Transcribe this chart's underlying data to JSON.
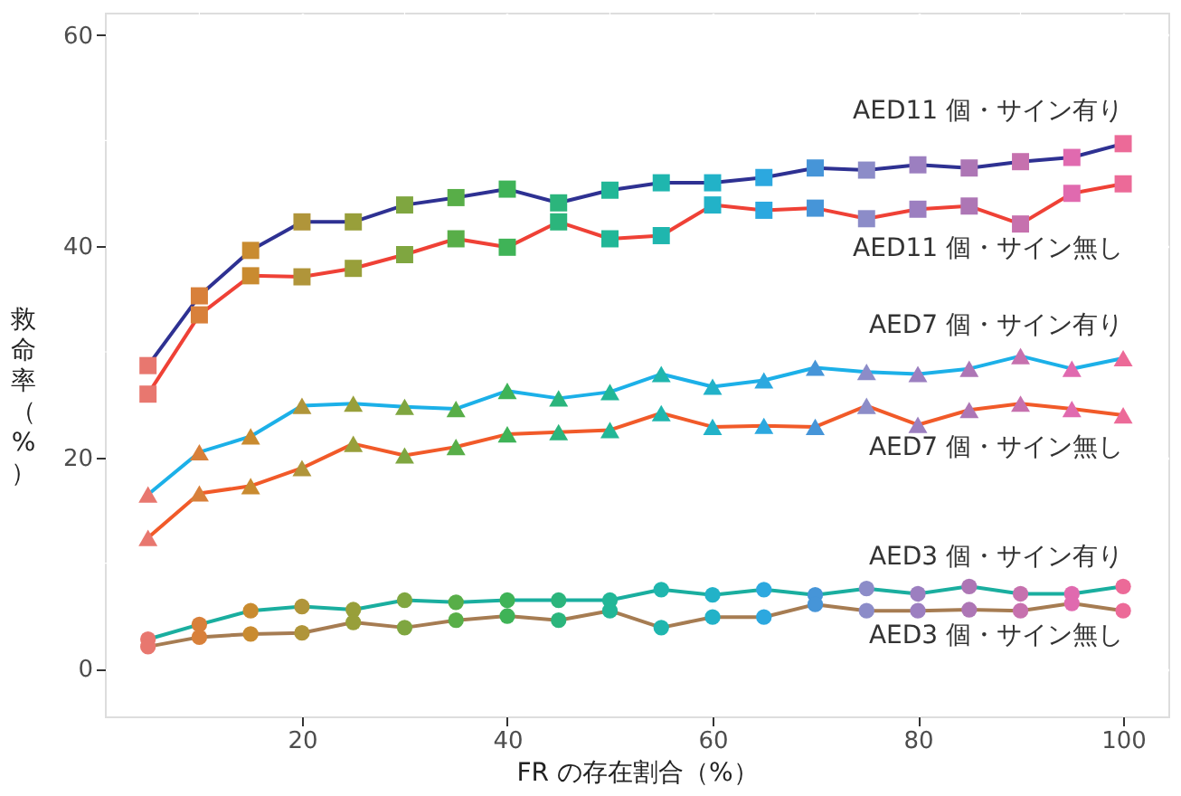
{
  "chart_data": {
    "type": "line",
    "xlabel": "FR の存在割合（%）",
    "ylabel": "救命率（%）",
    "x": [
      5,
      10,
      15,
      20,
      25,
      30,
      35,
      40,
      45,
      50,
      55,
      60,
      65,
      70,
      75,
      80,
      85,
      90,
      95,
      100
    ],
    "colors": [
      "#e8776f",
      "#d8803a",
      "#c98b30",
      "#b0953a",
      "#989f3a",
      "#7fa640",
      "#58ae48",
      "#3fb357",
      "#2bb57c",
      "#22b797",
      "#1fb6ae",
      "#22b2c8",
      "#2ca8df",
      "#4695d8",
      "#8c8cc8",
      "#9c7fc0",
      "#ad76b5",
      "#c671ae",
      "#e06aaf",
      "#ec6a98"
    ],
    "series": [
      {
        "color": "#2e3192",
        "marker": "square",
        "values": [
          28.7,
          35.3,
          39.6,
          42.3,
          42.3,
          43.9,
          44.6,
          45.4,
          44.1,
          45.3,
          46.0,
          46.0,
          46.5,
          47.4,
          47.2,
          47.7,
          47.4,
          48.0,
          48.4,
          49.7
        ]
      },
      {
        "color": "#ef4136",
        "marker": "square",
        "values": [
          26.0,
          33.5,
          37.2,
          37.1,
          37.9,
          39.2,
          40.7,
          39.9,
          42.3,
          40.7,
          41.0,
          43.9,
          43.4,
          43.6,
          42.6,
          43.5,
          43.8,
          42.1,
          45.0,
          45.9
        ]
      },
      {
        "color": "#1cb0e8",
        "marker": "triangle",
        "values": [
          16.5,
          20.5,
          22.0,
          24.9,
          25.1,
          24.8,
          24.6,
          26.3,
          25.6,
          26.2,
          27.9,
          26.7,
          27.3,
          28.5,
          28.1,
          27.9,
          28.4,
          29.6,
          28.4,
          29.4
        ]
      },
      {
        "color": "#f15a29",
        "marker": "triangle",
        "values": [
          12.4,
          16.6,
          17.3,
          19.0,
          21.3,
          20.2,
          21.0,
          22.2,
          22.4,
          22.6,
          24.2,
          22.9,
          23.0,
          22.9,
          24.9,
          23.1,
          24.5,
          25.1,
          24.6,
          24.0
        ]
      },
      {
        "color": "#1aae9f",
        "marker": "circle",
        "values": [
          2.8,
          4.2,
          5.5,
          5.9,
          5.6,
          6.5,
          6.3,
          6.5,
          6.5,
          6.5,
          7.5,
          7.0,
          7.5,
          7.0,
          7.6,
          7.1,
          7.8,
          7.1,
          7.1,
          7.8
        ]
      },
      {
        "color": "#a67c52",
        "marker": "circle",
        "values": [
          2.1,
          3.0,
          3.3,
          3.4,
          4.4,
          3.9,
          4.6,
          5.0,
          4.6,
          5.5,
          3.9,
          4.9,
          4.9,
          6.1,
          5.5,
          5.5,
          5.6,
          5.5,
          6.2,
          5.5
        ]
      }
    ],
    "annotations": [
      "AED11 個・サイン有り",
      "AED11 個・サイン無し",
      "AED7 個・サイン有り",
      "AED7 個・サイン無し",
      "AED3 個・サイン有り",
      "AED3 個・サイン無し"
    ],
    "xlim": [
      0.8,
      104.4
    ],
    "ylim": [
      -4.5,
      62.1
    ],
    "xticks": [
      20,
      40,
      60,
      80,
      100
    ],
    "yticks": [
      0,
      20,
      40,
      60
    ],
    "grid": true
  }
}
